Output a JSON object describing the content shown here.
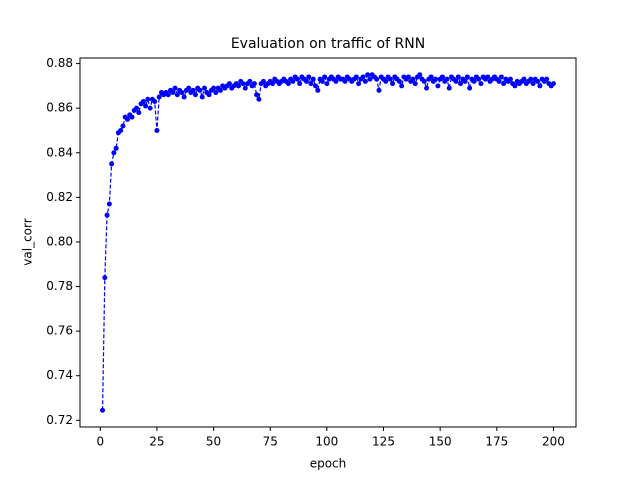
{
  "chart_data": {
    "type": "line",
    "title": "Evaluation on traffic of RNN",
    "x_label": "epoch",
    "y_label": "val_corr",
    "x": [
      1,
      2,
      3,
      4,
      5,
      6,
      7,
      8,
      9,
      10,
      11,
      12,
      13,
      14,
      15,
      16,
      17,
      18,
      19,
      20,
      21,
      22,
      23,
      24,
      25,
      26,
      27,
      28,
      29,
      30,
      31,
      32,
      33,
      34,
      35,
      36,
      37,
      38,
      39,
      40,
      41,
      42,
      43,
      44,
      45,
      46,
      47,
      48,
      49,
      50,
      51,
      52,
      53,
      54,
      55,
      56,
      57,
      58,
      59,
      60,
      61,
      62,
      63,
      64,
      65,
      66,
      67,
      68,
      69,
      70,
      71,
      72,
      73,
      74,
      75,
      76,
      77,
      78,
      79,
      80,
      81,
      82,
      83,
      84,
      85,
      86,
      87,
      88,
      89,
      90,
      91,
      92,
      93,
      94,
      95,
      96,
      97,
      98,
      99,
      100,
      101,
      102,
      103,
      104,
      105,
      106,
      107,
      108,
      109,
      110,
      111,
      112,
      113,
      114,
      115,
      116,
      117,
      118,
      119,
      120,
      121,
      122,
      123,
      124,
      125,
      126,
      127,
      128,
      129,
      130,
      131,
      132,
      133,
      134,
      135,
      136,
      137,
      138,
      139,
      140,
      141,
      142,
      143,
      144,
      145,
      146,
      147,
      148,
      149,
      150,
      151,
      152,
      153,
      154,
      155,
      156,
      157,
      158,
      159,
      160,
      161,
      162,
      163,
      164,
      165,
      166,
      167,
      168,
      169,
      170,
      171,
      172,
      173,
      174,
      175,
      176,
      177,
      178,
      179,
      180,
      181,
      182,
      183,
      184,
      185,
      186,
      187,
      188,
      189,
      190,
      191,
      192,
      193,
      194,
      195,
      196,
      197,
      198,
      199,
      200
    ],
    "series": [
      {
        "color": "#0000ff",
        "values": [
          0.7245,
          0.784,
          0.812,
          0.817,
          0.835,
          0.84,
          0.842,
          0.849,
          0.85,
          0.852,
          0.856,
          0.855,
          0.857,
          0.856,
          0.859,
          0.86,
          0.858,
          0.862,
          0.863,
          0.861,
          0.864,
          0.86,
          0.864,
          0.863,
          0.85,
          0.865,
          0.867,
          0.866,
          0.867,
          0.866,
          0.868,
          0.867,
          0.869,
          0.866,
          0.868,
          0.867,
          0.865,
          0.868,
          0.869,
          0.867,
          0.868,
          0.866,
          0.869,
          0.868,
          0.865,
          0.869,
          0.867,
          0.866,
          0.868,
          0.869,
          0.867,
          0.869,
          0.868,
          0.87,
          0.869,
          0.87,
          0.871,
          0.869,
          0.87,
          0.871,
          0.87,
          0.872,
          0.871,
          0.869,
          0.871,
          0.872,
          0.87,
          0.871,
          0.866,
          0.864,
          0.871,
          0.872,
          0.87,
          0.871,
          0.872,
          0.871,
          0.873,
          0.872,
          0.871,
          0.872,
          0.873,
          0.872,
          0.871,
          0.873,
          0.872,
          0.874,
          0.873,
          0.871,
          0.874,
          0.873,
          0.872,
          0.874,
          0.871,
          0.873,
          0.87,
          0.868,
          0.873,
          0.872,
          0.874,
          0.871,
          0.873,
          0.874,
          0.873,
          0.872,
          0.874,
          0.873,
          0.873,
          0.872,
          0.874,
          0.873,
          0.872,
          0.873,
          0.874,
          0.871,
          0.873,
          0.874,
          0.872,
          0.875,
          0.873,
          0.875,
          0.874,
          0.873,
          0.868,
          0.874,
          0.873,
          0.872,
          0.874,
          0.873,
          0.871,
          0.874,
          0.873,
          0.872,
          0.87,
          0.874,
          0.873,
          0.874,
          0.872,
          0.873,
          0.871,
          0.874,
          0.875,
          0.873,
          0.872,
          0.869,
          0.873,
          0.874,
          0.872,
          0.873,
          0.87,
          0.873,
          0.874,
          0.872,
          0.873,
          0.869,
          0.874,
          0.873,
          0.872,
          0.874,
          0.871,
          0.873,
          0.872,
          0.874,
          0.869,
          0.873,
          0.872,
          0.874,
          0.873,
          0.871,
          0.874,
          0.873,
          0.874,
          0.872,
          0.873,
          0.874,
          0.873,
          0.872,
          0.874,
          0.871,
          0.873,
          0.872,
          0.873,
          0.871,
          0.87,
          0.872,
          0.871,
          0.872,
          0.873,
          0.871,
          0.872,
          0.873,
          0.871,
          0.873,
          0.872,
          0.87,
          0.873,
          0.872,
          0.873,
          0.871,
          0.87,
          0.871
        ]
      }
    ],
    "xlim": [
      -8.95,
      209.95
    ],
    "xticks": [
      0,
      25,
      50,
      75,
      100,
      125,
      150,
      175,
      200
    ],
    "ylim": [
      0.717,
      0.8825
    ],
    "yticks": [
      0.72,
      0.74,
      0.76,
      0.78,
      {
        "value": 0.8,
        "label": "0.80"
      },
      0.82,
      0.84,
      0.86,
      0.88
    ],
    "line_style": "dashed",
    "marker": "circle"
  }
}
